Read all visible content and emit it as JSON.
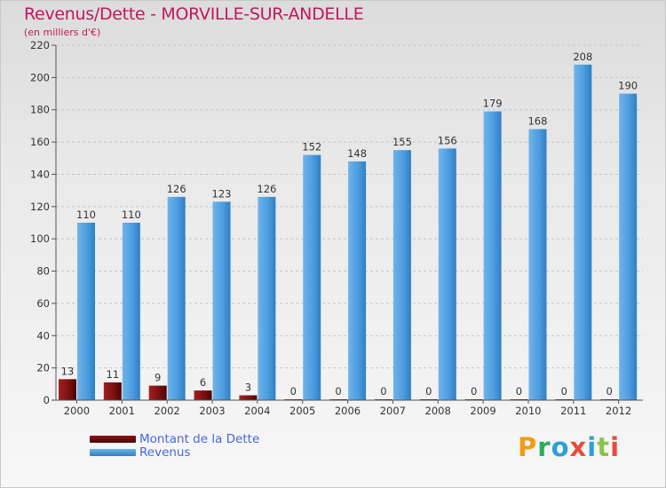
{
  "title": "Revenus/Dette - MORVILLE-SUR-ANDELLE",
  "subtitle": "(en milliers d'€)",
  "logo": {
    "text": "Proxiti",
    "letters": [
      {
        "ch": "P",
        "color": "#f39c12"
      },
      {
        "ch": "r",
        "color": "#27ae60"
      },
      {
        "ch": "o",
        "color": "#2d9fd8"
      },
      {
        "ch": "x",
        "color": "#e74c3c"
      },
      {
        "ch": "i",
        "color": "#2d9fd8"
      },
      {
        "ch": "t",
        "color": "#8bc34a"
      },
      {
        "ch": "i",
        "color": "#e74c3c"
      }
    ]
  },
  "colors": {
    "dette": "#7a0f0f",
    "revenus": "#4d9de0",
    "title": "#c2185b",
    "legend_text": "#4466dd"
  },
  "chart_data": {
    "type": "bar",
    "title": "Revenus/Dette - MORVILLE-SUR-ANDELLE",
    "ylabel": "(en milliers d'€)",
    "categories": [
      "2000",
      "2001",
      "2002",
      "2003",
      "2004",
      "2005",
      "2006",
      "2007",
      "2008",
      "2009",
      "2010",
      "2011",
      "2012"
    ],
    "series": [
      {
        "name": "Montant de la Dette",
        "values": [
          13,
          11,
          9,
          6,
          3,
          0,
          0,
          0,
          0,
          0,
          0,
          0,
          0
        ]
      },
      {
        "name": "Revenus",
        "values": [
          110,
          110,
          126,
          123,
          126,
          152,
          148,
          155,
          156,
          179,
          168,
          208,
          190
        ]
      }
    ],
    "ylim": [
      0,
      220
    ],
    "yticks": [
      0,
      20,
      40,
      60,
      80,
      100,
      120,
      140,
      160,
      180,
      200,
      220
    ],
    "grid": true,
    "legend_position": "bottom-left"
  }
}
